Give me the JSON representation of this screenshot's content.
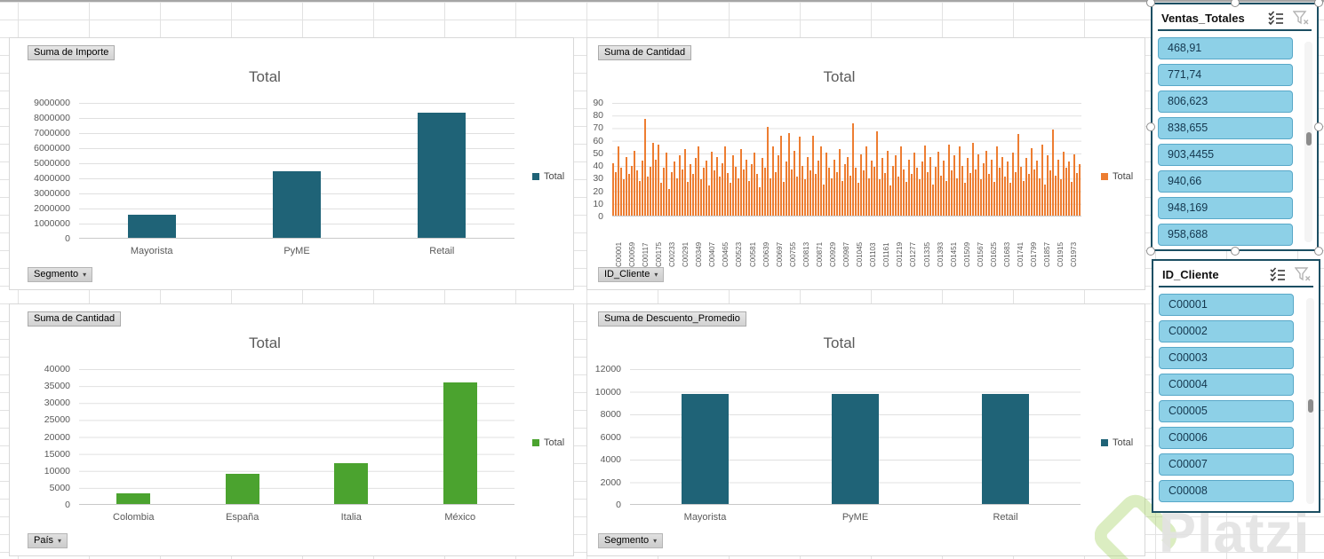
{
  "ui": {
    "dropdown_glyph": "▾"
  },
  "colors": {
    "teal": "#1F6377",
    "orange": "#ED7D31",
    "green": "#4BA32F",
    "slicer_fill": "#8DD0E7",
    "slicer_border": "#58A8C8",
    "slicer_frame": "#1C4F63"
  },
  "charts": [
    {
      "field_button": "Suma de Importe",
      "axis_button": "Segmento",
      "title": "Total",
      "legend_label": "Total",
      "series_color": "#1F6377",
      "chart_data": {
        "type": "bar",
        "title": "Total",
        "categories": [
          "Mayorista",
          "PyME",
          "Retail"
        ],
        "values": [
          1530000,
          4450000,
          8330000
        ],
        "ylim": [
          0,
          9000000
        ],
        "y_ticks": [
          "9000000",
          "8000000",
          "7000000",
          "6000000",
          "5000000",
          "4000000",
          "3000000",
          "2000000",
          "1000000",
          "0"
        ],
        "legend": [
          "Total"
        ],
        "legend_position": "right",
        "grid": true
      }
    },
    {
      "field_button": "Suma de Cantidad",
      "axis_button": "ID_Cliente",
      "title": "Total",
      "legend_label": "Total",
      "series_color": "#ED7D31",
      "chart_data": {
        "type": "bar-dense",
        "title": "Total",
        "x_tick_labels": [
          "C00001",
          "C00059",
          "C00117",
          "C00175",
          "C00233",
          "C00291",
          "C00349",
          "C00407",
          "C00465",
          "C00523",
          "C00581",
          "C00639",
          "C00697",
          "C00755",
          "C00813",
          "C00871",
          "C00929",
          "C00987",
          "C01045",
          "C01103",
          "C01161",
          "C01219",
          "C01277",
          "C01335",
          "C01393",
          "C01451",
          "C01509",
          "C01567",
          "C01625",
          "C01683",
          "C01741",
          "C01799",
          "C01857",
          "C01915",
          "C01973"
        ],
        "values": [
          42,
          35,
          55,
          38,
          29,
          47,
          33,
          40,
          52,
          36,
          28,
          44,
          77,
          31,
          39,
          58,
          45,
          57,
          26,
          38,
          50,
          21,
          35,
          43,
          30,
          48,
          37,
          53,
          27,
          41,
          33,
          46,
          55,
          29,
          38,
          44,
          24,
          51,
          36,
          47,
          31,
          42,
          55,
          34,
          26,
          48,
          39,
          30,
          53,
          37,
          45,
          28,
          41,
          50,
          33,
          23,
          46,
          38,
          71,
          30,
          55,
          35,
          48,
          64,
          27,
          43,
          66,
          37,
          52,
          31,
          63,
          40,
          29,
          47,
          36,
          64,
          33,
          44,
          55,
          25,
          50,
          38,
          30,
          45,
          35,
          53,
          28,
          41,
          47,
          32,
          74,
          38,
          26,
          49,
          36,
          55,
          30,
          44,
          39,
          67,
          29,
          46,
          34,
          52,
          24,
          40,
          48,
          31,
          55,
          37,
          27,
          45,
          33,
          50,
          38,
          29,
          43,
          56,
          35,
          47,
          25,
          39,
          51,
          32,
          44,
          28,
          57,
          36,
          48,
          30,
          55,
          40,
          26,
          46,
          34,
          58,
          37,
          49,
          29,
          42,
          52,
          33,
          45,
          27,
          55,
          38,
          47,
          31,
          43,
          26,
          50,
          35,
          65,
          39,
          28,
          46,
          33,
          54,
          37,
          44,
          30,
          57,
          25,
          48,
          36,
          69,
          32,
          45,
          29,
          51,
          38,
          43,
          27,
          49,
          34,
          41
        ],
        "ylim": [
          0,
          90
        ],
        "y_ticks": [
          "90",
          "80",
          "70",
          "60",
          "50",
          "40",
          "30",
          "20",
          "10",
          "0"
        ],
        "legend": [
          "Total"
        ],
        "legend_position": "right",
        "grid": true
      }
    },
    {
      "field_button": "Suma de Cantidad",
      "axis_button": "País",
      "title": "Total",
      "legend_label": "Total",
      "series_color": "#4BA32F",
      "chart_data": {
        "type": "bar",
        "title": "Total",
        "categories": [
          "Colombia",
          "España",
          "Italia",
          "México"
        ],
        "values": [
          3200,
          9000,
          12100,
          36100
        ],
        "ylim": [
          0,
          40000
        ],
        "y_ticks": [
          "40000",
          "35000",
          "30000",
          "25000",
          "20000",
          "15000",
          "10000",
          "5000",
          "0"
        ],
        "legend": [
          "Total"
        ],
        "legend_position": "right",
        "grid": true
      }
    },
    {
      "field_button": "Suma de Descuento_Promedio",
      "axis_button": "Segmento",
      "title": "Total",
      "legend_label": "Total",
      "series_color": "#1F6377",
      "chart_data": {
        "type": "bar",
        "title": "Total",
        "categories": [
          "Mayorista",
          "PyME",
          "Retail"
        ],
        "values": [
          9800,
          9820,
          9810
        ],
        "ylim": [
          0,
          12000
        ],
        "y_ticks": [
          "12000",
          "10000",
          "8000",
          "6000",
          "4000",
          "2000",
          "0"
        ],
        "legend": [
          "Total"
        ],
        "legend_position": "right",
        "grid": true
      }
    }
  ],
  "slicers": [
    {
      "title": "Ventas_Totales",
      "items": [
        "468,91",
        "771,74",
        "806,623",
        "838,655",
        "903,4455",
        "940,66",
        "948,169",
        "958,688"
      ],
      "selected": true
    },
    {
      "title": "ID_Cliente",
      "items": [
        "C00001",
        "C00002",
        "C00003",
        "C00004",
        "C00005",
        "C00006",
        "C00007",
        "C00008"
      ],
      "selected": false
    }
  ],
  "watermark": {
    "text": "Platzi"
  }
}
